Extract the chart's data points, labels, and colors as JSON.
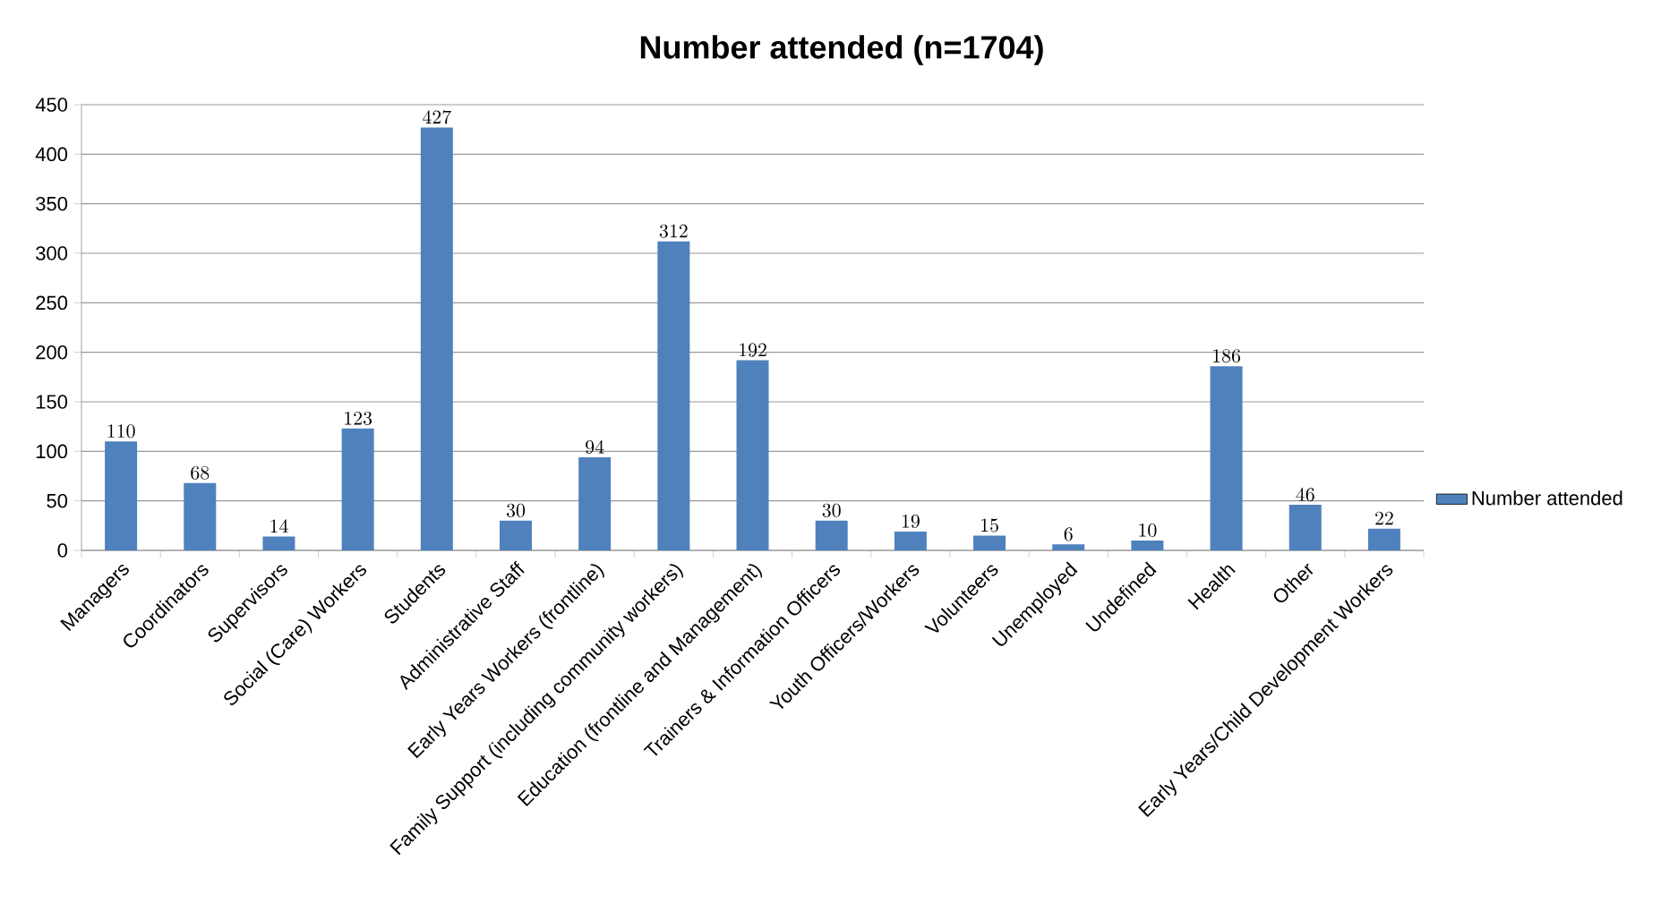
{
  "chart_data": {
    "type": "bar",
    "title": "Number attended (n=1704)",
    "categories": [
      "Managers",
      "Coordinators",
      "Supervisors",
      "Social (Care) Workers",
      "Students",
      "Administrative Staff",
      "Early Years Workers (frontline)",
      "Family Support (including community workers)",
      "Education (frontline and Management)",
      "Trainers & Information Officers",
      "Youth Officers/Workers",
      "Volunteers",
      "Unemployed",
      "Undefined",
      "Health",
      "Other",
      "Early Years/Child Development Workers"
    ],
    "series": [
      {
        "name": "Number attended",
        "color": "#4f81bd",
        "values": [
          110,
          68,
          14,
          123,
          427,
          30,
          94,
          312,
          192,
          30,
          19,
          15,
          6,
          10,
          186,
          46,
          22
        ]
      }
    ],
    "ylim": [
      0,
      450
    ],
    "yticks": [
      0,
      50,
      100,
      150,
      200,
      250,
      300,
      350,
      400,
      450
    ],
    "grid": "y",
    "legend": "right",
    "data_labels": true
  }
}
